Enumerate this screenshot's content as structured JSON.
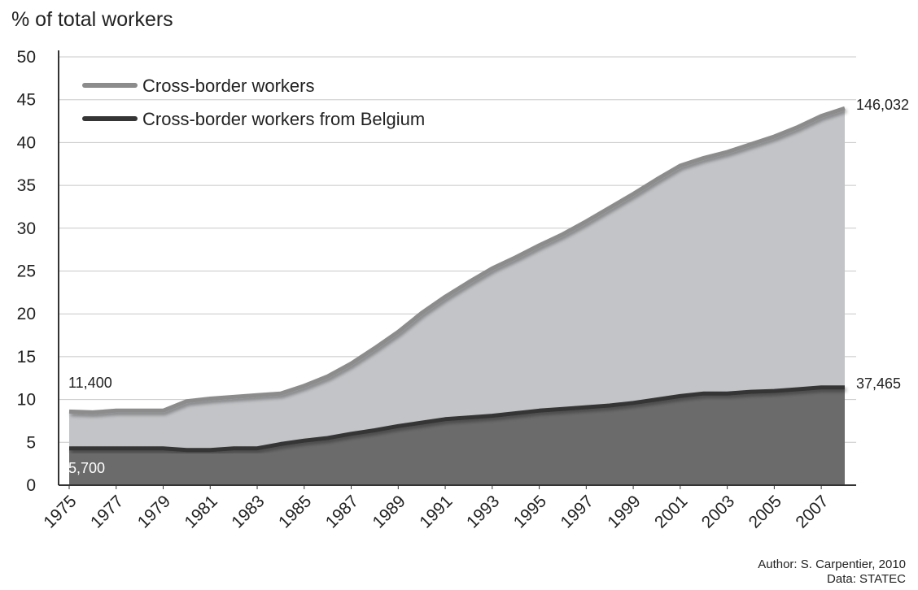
{
  "chart_data": {
    "type": "area",
    "ylabel": "% of total workers",
    "ylim": [
      0,
      50
    ],
    "yticks": [
      0,
      5,
      10,
      15,
      20,
      25,
      30,
      35,
      40,
      45,
      50
    ],
    "x": [
      1975,
      1976,
      1977,
      1978,
      1979,
      1980,
      1981,
      1982,
      1983,
      1984,
      1985,
      1986,
      1987,
      1988,
      1989,
      1990,
      1991,
      1992,
      1993,
      1994,
      1995,
      1996,
      1997,
      1998,
      1999,
      2000,
      2001,
      2002,
      2003,
      2004,
      2005,
      2006,
      2007,
      2008
    ],
    "xtick_labels": [
      "1975",
      "1977",
      "1979",
      "1981",
      "1983",
      "1985",
      "1987",
      "1989",
      "1991",
      "1993",
      "1995",
      "1997",
      "1999",
      "2001",
      "2003",
      "2005",
      "2007"
    ],
    "grid": true,
    "legend_position": "top-left",
    "series": [
      {
        "name": "Cross-border workers",
        "color": "#8c8c8c",
        "fill": "#c2c4c7",
        "values": [
          8.6,
          8.5,
          8.7,
          8.7,
          8.7,
          9.8,
          10.1,
          10.3,
          10.5,
          10.7,
          11.6,
          12.7,
          14.2,
          16.0,
          17.9,
          20.1,
          22.0,
          23.7,
          25.3,
          26.6,
          28.0,
          29.3,
          30.8,
          32.4,
          34.0,
          35.7,
          37.3,
          38.2,
          38.9,
          39.8,
          40.7,
          41.8,
          43.1,
          44.0
        ]
      },
      {
        "name": "Cross-border workers from Belgium",
        "color": "#353535",
        "fill": "#6b6b6b",
        "values": [
          4.3,
          4.3,
          4.3,
          4.3,
          4.3,
          4.1,
          4.1,
          4.3,
          4.3,
          4.8,
          5.2,
          5.5,
          6.0,
          6.4,
          6.9,
          7.3,
          7.7,
          7.9,
          8.1,
          8.4,
          8.7,
          8.9,
          9.1,
          9.3,
          9.6,
          10.0,
          10.4,
          10.7,
          10.7,
          10.9,
          11.0,
          11.2,
          11.4,
          11.4
        ]
      }
    ],
    "annotations": {
      "cb_start": "11,400",
      "cb_end": "146,032",
      "be_start": "5,700",
      "be_end": "37,465"
    }
  },
  "credits": {
    "author": "Author: S. Carpentier, 2010",
    "data": "Data: STATEC"
  }
}
